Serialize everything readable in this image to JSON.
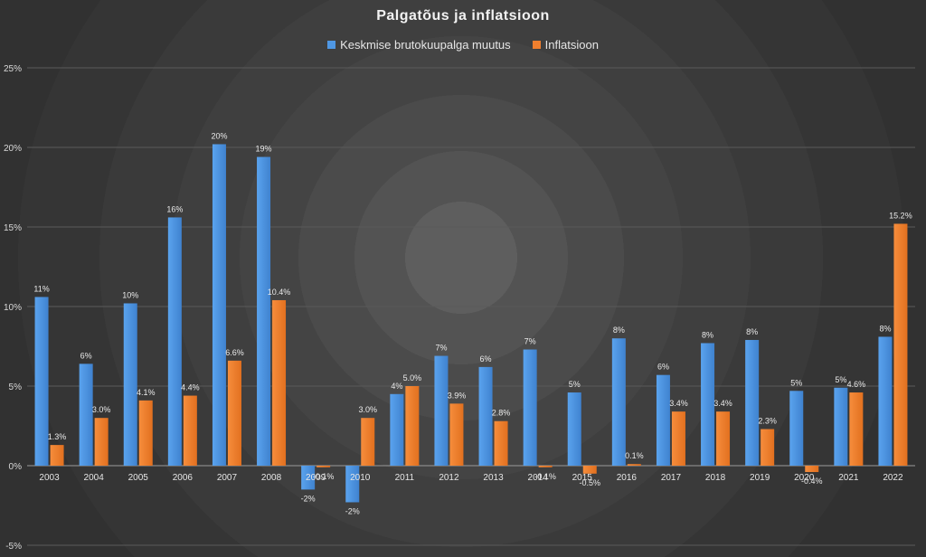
{
  "chart_data": {
    "type": "bar",
    "title": "Palgatõus ja inflatsioon",
    "categories": [
      "2003",
      "2004",
      "2005",
      "2006",
      "2007",
      "2008",
      "2009",
      "2010",
      "2011",
      "2012",
      "2013",
      "2014",
      "2015",
      "2016",
      "2017",
      "2018",
      "2019",
      "2020",
      "2021",
      "2022"
    ],
    "series": [
      {
        "name": "Keskmise brutokuupalga muutus",
        "color": "#4f97e3",
        "values": [
          10.6,
          6.4,
          10.2,
          15.6,
          20.2,
          19.4,
          -1.5,
          -2.3,
          4.5,
          6.9,
          6.2,
          7.3,
          4.6,
          8.0,
          5.7,
          7.7,
          7.9,
          4.7,
          4.9,
          8.1
        ],
        "labels": [
          "11%",
          "6%",
          "10%",
          "16%",
          "20%",
          "19%",
          "-2%",
          "-2%",
          "4%",
          "7%",
          "6%",
          "7%",
          "5%",
          "8%",
          "6%",
          "8%",
          "8%",
          "5%",
          "5%",
          "8%"
        ]
      },
      {
        "name": "Inflatsioon",
        "color": "#f07f2e",
        "values": [
          1.3,
          3.0,
          4.1,
          4.4,
          6.6,
          10.4,
          -0.1,
          3.0,
          5.0,
          3.9,
          2.8,
          -0.1,
          -0.5,
          0.1,
          3.4,
          3.4,
          2.3,
          -0.4,
          4.6,
          15.2
        ],
        "labels": [
          "1.3%",
          "3.0%",
          "4.1%",
          "4.4%",
          "6.6%",
          "10.4%",
          "-0.1%",
          "3.0%",
          "5.0%",
          "3.9%",
          "2.8%",
          "-0.1%",
          "-0.5%",
          "0.1%",
          "3.4%",
          "3.4%",
          "2.3%",
          "-0.4%",
          "4.6%",
          "15.2%"
        ]
      }
    ],
    "y_ticks": [
      "-5%",
      "0%",
      "5%",
      "10%",
      "15%",
      "20%",
      "25%"
    ],
    "ylim": [
      -5,
      25
    ],
    "grid": true,
    "legend": "top-center"
  }
}
